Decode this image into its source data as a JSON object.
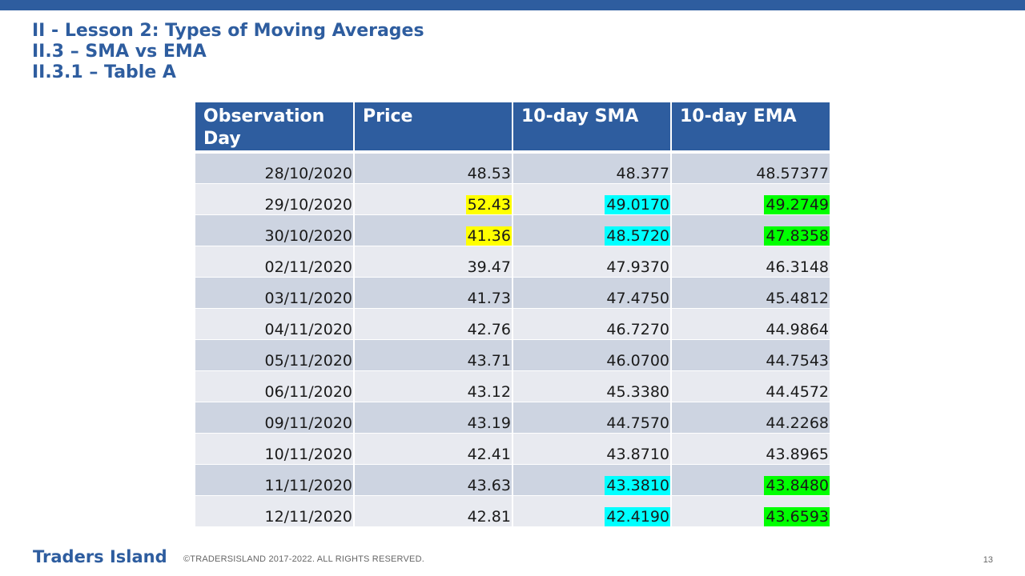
{
  "header": {
    "lines": [
      "II - Lesson 2: Types of Moving Averages",
      "II.3 – SMA vs EMA",
      "II.3.1 – Table A"
    ]
  },
  "table": {
    "columns": [
      "Observation Day",
      "Price",
      "10-day SMA",
      "10-day EMA"
    ],
    "rows": [
      {
        "day": "28/10/2020",
        "price": "48.53",
        "sma": "48.377",
        "ema": "48.57377",
        "price_hl": "",
        "sma_hl": "",
        "ema_hl": ""
      },
      {
        "day": "29/10/2020",
        "price": "52.43",
        "sma": "49.0170",
        "ema": "49.2749",
        "price_hl": "yellow",
        "sma_hl": "cyan",
        "ema_hl": "green"
      },
      {
        "day": "30/10/2020",
        "price": "41.36",
        "sma": "48.5720",
        "ema": "47.8358",
        "price_hl": "yellow",
        "sma_hl": "cyan",
        "ema_hl": "green"
      },
      {
        "day": "02/11/2020",
        "price": "39.47",
        "sma": "47.9370",
        "ema": "46.3148",
        "price_hl": "",
        "sma_hl": "",
        "ema_hl": ""
      },
      {
        "day": "03/11/2020",
        "price": "41.73",
        "sma": "47.4750",
        "ema": "45.4812",
        "price_hl": "",
        "sma_hl": "",
        "ema_hl": ""
      },
      {
        "day": "04/11/2020",
        "price": "42.76",
        "sma": "46.7270",
        "ema": "44.9864",
        "price_hl": "",
        "sma_hl": "",
        "ema_hl": ""
      },
      {
        "day": "05/11/2020",
        "price": "43.71",
        "sma": "46.0700",
        "ema": "44.7543",
        "price_hl": "",
        "sma_hl": "",
        "ema_hl": ""
      },
      {
        "day": "06/11/2020",
        "price": "43.12",
        "sma": "45.3380",
        "ema": "44.4572",
        "price_hl": "",
        "sma_hl": "",
        "ema_hl": ""
      },
      {
        "day": "09/11/2020",
        "price": "43.19",
        "sma": "44.7570",
        "ema": "44.2268",
        "price_hl": "",
        "sma_hl": "",
        "ema_hl": ""
      },
      {
        "day": "10/11/2020",
        "price": "42.41",
        "sma": "43.8710",
        "ema": "43.8965",
        "price_hl": "",
        "sma_hl": "",
        "ema_hl": ""
      },
      {
        "day": "11/11/2020",
        "price": "43.63",
        "sma": "43.3810",
        "ema": "43.8480",
        "price_hl": "",
        "sma_hl": "cyan",
        "ema_hl": "green"
      },
      {
        "day": "12/11/2020",
        "price": "42.81",
        "sma": "42.4190",
        "ema": "43.6593",
        "price_hl": "",
        "sma_hl": "cyan",
        "ema_hl": "green"
      }
    ]
  },
  "footer": {
    "brand": "Traders Island",
    "copyright": "©TRADERSISLAND 2017-2022. ALL RIGHTS RESERVED.",
    "page_number": "13"
  },
  "colors": {
    "brand": "#2e5d9f",
    "row_dark": "#cdd4e1",
    "row_light": "#e8eaf0",
    "highlight_yellow": "#ffff00",
    "highlight_cyan": "#00ffff",
    "highlight_green": "#00ff00"
  }
}
